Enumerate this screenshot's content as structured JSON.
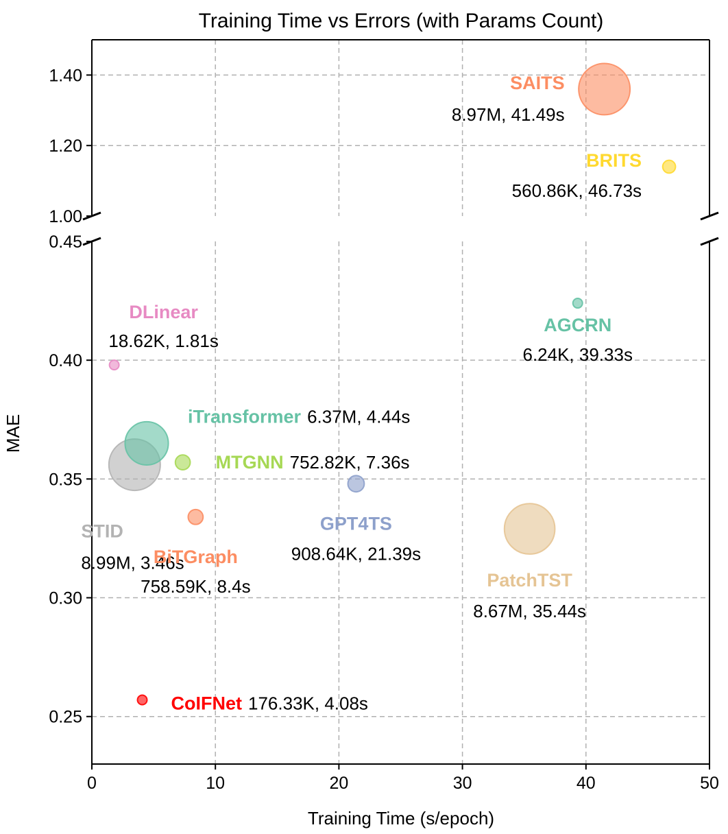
{
  "chart_data": {
    "type": "scatter",
    "title": "Training Time vs Errors (with Params Count)",
    "xlabel": "Training Time (s/epoch)",
    "ylabel": "MAE",
    "xlim": [
      0,
      50
    ],
    "x_ticks": [
      "0",
      "10",
      "20",
      "30",
      "40",
      "50"
    ],
    "broken_y_axis": true,
    "upper_ylim": [
      1.0,
      1.5
    ],
    "upper_y_ticks": [
      "1.00",
      "1.20",
      "1.40"
    ],
    "lower_ylim": [
      0.23,
      0.45
    ],
    "lower_y_ticks": [
      "0.25",
      "0.30",
      "0.35",
      "0.40",
      "0.45"
    ],
    "grid": true,
    "points": [
      {
        "name": "SAITS",
        "params": "8.97M",
        "time": "41.49s",
        "info": "8.97M, 41.49s",
        "x": 41.49,
        "y": 1.36,
        "params_count": 8970000,
        "color": "#fc8d62"
      },
      {
        "name": "BRITS",
        "params": "560.86K",
        "time": "46.73s",
        "info": "560.86K, 46.73s",
        "x": 46.73,
        "y": 1.14,
        "params_count": 560860,
        "color": "#ffd92f"
      },
      {
        "name": "DLinear",
        "params": "18.62K",
        "time": "1.81s",
        "info": "18.62K, 1.81s",
        "x": 1.81,
        "y": 0.398,
        "params_count": 18620,
        "color": "#e78ac3"
      },
      {
        "name": "AGCRN",
        "params": "6.24K",
        "time": "39.33s",
        "info": "6.24K, 39.33s",
        "x": 39.33,
        "y": 0.424,
        "params_count": 6240,
        "color": "#66c2a5"
      },
      {
        "name": "iTransformer",
        "params": "6.37M",
        "time": "4.44s",
        "info": "6.37M, 4.44s",
        "x": 4.44,
        "y": 0.365,
        "params_count": 6370000,
        "color": "#66c2a5"
      },
      {
        "name": "MTGNN",
        "params": "752.82K",
        "time": "7.36s",
        "info": "752.82K, 7.36s",
        "x": 7.36,
        "y": 0.357,
        "params_count": 752820,
        "color": "#a6d854"
      },
      {
        "name": "STID",
        "params": "8.99M",
        "time": "3.46s",
        "info": "8.99M, 3.46s",
        "x": 3.46,
        "y": 0.356,
        "params_count": 8990000,
        "color": "#b3b3b3"
      },
      {
        "name": "GPT4TS",
        "params": "908.64K",
        "time": "21.39s",
        "info": "908.64K, 21.39s",
        "x": 21.39,
        "y": 0.348,
        "params_count": 908640,
        "color": "#8da0cb"
      },
      {
        "name": "BiTGraph",
        "params": "758.59K",
        "time": "8.4s",
        "info": "758.59K, 8.4s",
        "x": 8.4,
        "y": 0.334,
        "params_count": 758590,
        "color": "#fc8d62"
      },
      {
        "name": "PatchTST",
        "params": "8.67M",
        "time": "35.44s",
        "info": "8.67M, 35.44s",
        "x": 35.44,
        "y": 0.329,
        "params_count": 8670000,
        "color": "#e5c494"
      },
      {
        "name": "CoIFNet",
        "params": "176.33K",
        "time": "4.08s",
        "info": "176.33K, 4.08s",
        "x": 4.08,
        "y": 0.257,
        "params_count": 176330,
        "color": "#ff0000"
      }
    ]
  }
}
